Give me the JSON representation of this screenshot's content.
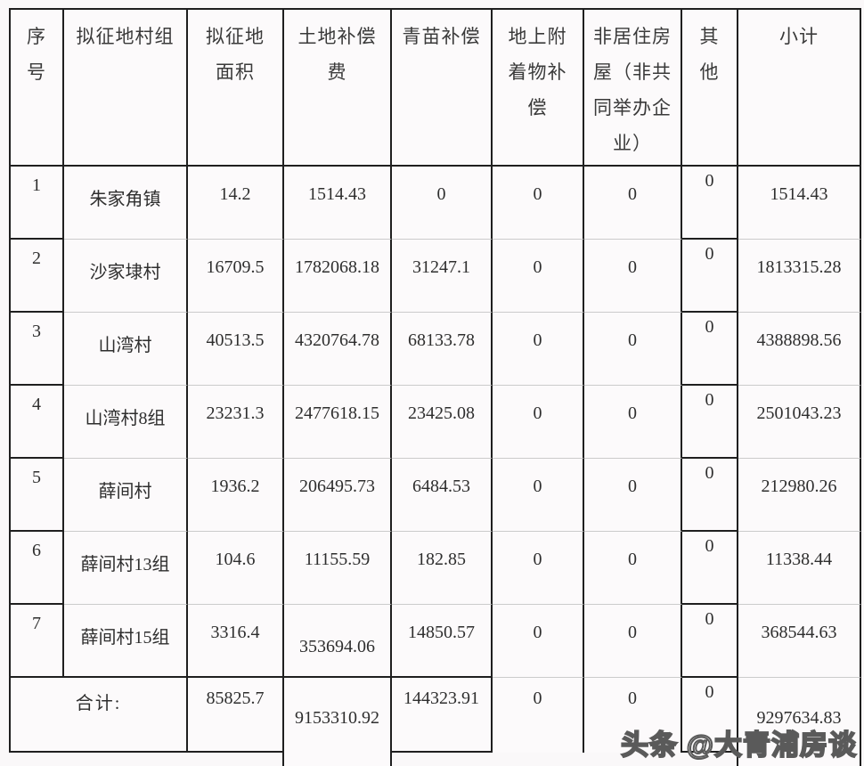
{
  "table": {
    "headers": [
      "序号",
      "拟征地村组",
      "拟征地面积",
      "土地补偿费",
      "青苗补偿",
      "地上附着物补偿",
      "非居住房屋（非共同举办企业）",
      "其他",
      "小计"
    ],
    "rows": [
      [
        "1",
        "朱家角镇",
        "14.2",
        "1514.43",
        "0",
        "0",
        "0",
        "0",
        "1514.43"
      ],
      [
        "2",
        "沙家埭村",
        "16709.5",
        "1782068.18",
        "31247.1",
        "0",
        "0",
        "0",
        "1813315.28"
      ],
      [
        "3",
        "山湾村",
        "40513.5",
        "4320764.78",
        "68133.78",
        "0",
        "0",
        "0",
        "4388898.56"
      ],
      [
        "4",
        "山湾村8组",
        "23231.3",
        "2477618.15",
        "23425.08",
        "0",
        "0",
        "0",
        "2501043.23"
      ],
      [
        "5",
        "薛间村",
        "1936.2",
        "206495.73",
        "6484.53",
        "0",
        "0",
        "0",
        "212980.26"
      ],
      [
        "6",
        "薛间村13组",
        "104.6",
        "11155.59",
        "182.85",
        "0",
        "0",
        "0",
        "11338.44"
      ],
      [
        "7",
        "薛间村15组",
        "3316.4",
        "353694.06",
        "14850.57",
        "0",
        "0",
        "0",
        "368544.63"
      ]
    ],
    "total": {
      "label": "合计:",
      "area": "85825.7",
      "land": "9153310.92",
      "crop": "144323.91",
      "ground": "0",
      "nonres": "0",
      "other": "0",
      "subtotal": "9297634.83"
    }
  },
  "watermark": {
    "text": "头条 @大青浦房谈"
  },
  "colors": {
    "border_dark": "#1f1f1f",
    "border_light": "#cbcbcb",
    "background": "#faf8f9",
    "text": "#2e2e2e"
  }
}
